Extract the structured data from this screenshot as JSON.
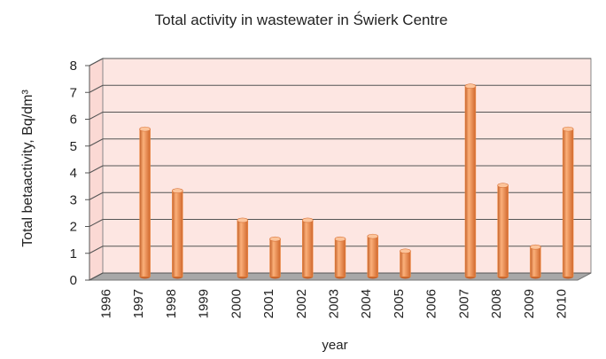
{
  "chart_data": {
    "type": "bar",
    "title": "Total activity in wastewater in Świerk Centre",
    "x_label": "year",
    "y_label": "Total betaactivity, Bq/dm³",
    "categories": [
      "1996",
      "1997",
      "1998",
      "1999",
      "2000",
      "2001",
      "2002",
      "2003",
      "2004",
      "2005",
      "2006",
      "2007",
      "2008",
      "2009",
      "2010"
    ],
    "values": [
      null,
      5.5,
      3.2,
      null,
      2.1,
      1.4,
      2.1,
      1.4,
      1.5,
      0.95,
      null,
      7.1,
      3.4,
      1.1,
      5.5
    ],
    "color": "#f5934a",
    "ylim": [
      0,
      8
    ],
    "yticks": [
      0,
      1,
      2,
      3,
      4,
      5,
      6,
      7,
      8
    ],
    "grid": true
  }
}
